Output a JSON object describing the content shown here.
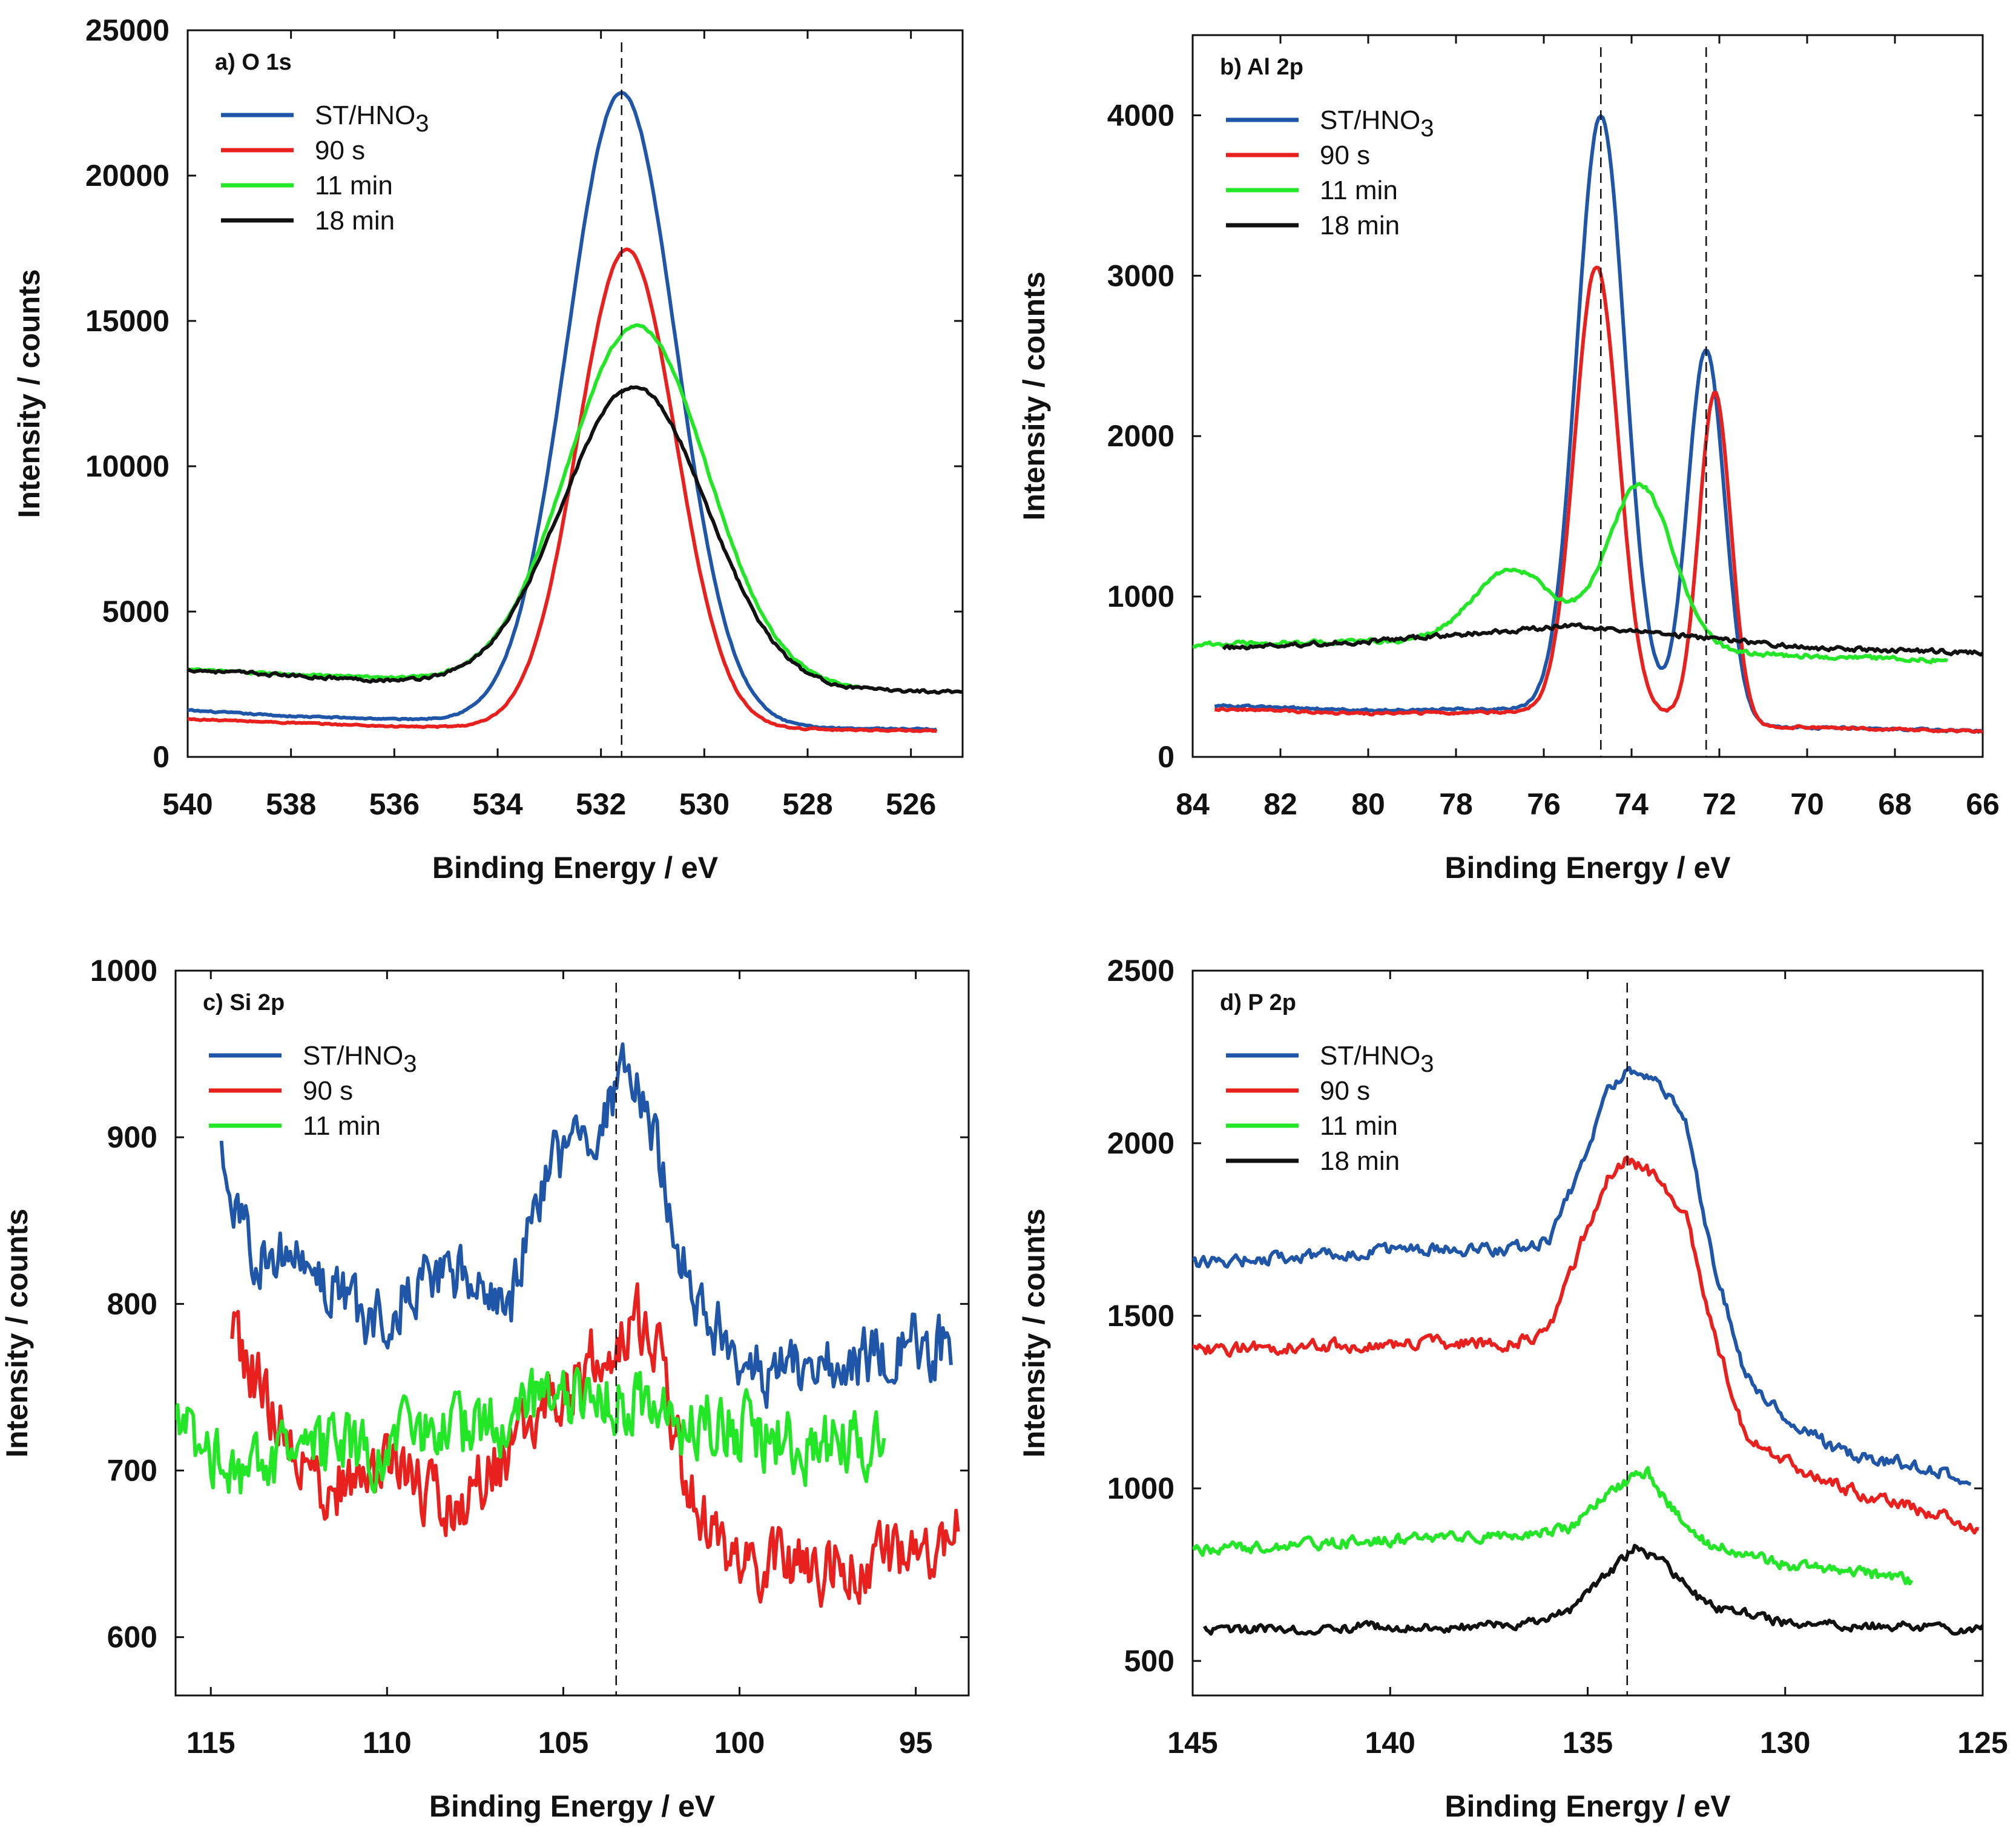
{
  "chart_data": [
    {
      "type": "line",
      "panel": "a",
      "title": "a) O 1s",
      "xlabel": "Binding Energy / eV",
      "ylabel": "Intensity / counts",
      "xlim": [
        540,
        525
      ],
      "ylim": [
        0,
        25000
      ],
      "xticks": [
        540,
        538,
        536,
        534,
        532,
        530,
        528,
        526
      ],
      "yticks": [
        0,
        5000,
        10000,
        15000,
        20000,
        25000
      ],
      "reference_lines": [
        531.6
      ],
      "legend_location": "top-left",
      "series": [
        {
          "name": "ST/HNO3",
          "color": "#1f56a8",
          "peaks": [
            {
              "c": 531.6,
              "a": 21700,
              "w": 1.05
            }
          ],
          "baseline": [
            [
              540,
              1600
            ],
            [
              538,
              1400
            ],
            [
              536,
              1300
            ],
            [
              534,
              1250
            ],
            [
              530,
              1100
            ],
            [
              528,
              1000
            ],
            [
              525.5,
              950
            ]
          ],
          "x_range": [
            540,
            525.5
          ],
          "noise": 40
        },
        {
          "name": "90 s",
          "color": "#e8201e",
          "peaks": [
            {
              "c": 531.5,
              "a": 16500,
              "w": 0.95
            }
          ],
          "baseline": [
            [
              540,
              1300
            ],
            [
              536,
              1050
            ],
            [
              534,
              1000
            ],
            [
              530,
              950
            ],
            [
              528,
              950
            ],
            [
              525.5,
              900
            ]
          ],
          "x_range": [
            540,
            525.5
          ],
          "noise": 40
        },
        {
          "name": "11 min",
          "color": "#22e626",
          "peaks": [
            {
              "c": 531.3,
              "a": 12300,
              "w": 1.35
            }
          ],
          "baseline": [
            [
              540,
              3000
            ],
            [
              536,
              2700
            ],
            [
              534,
              2600
            ],
            [
              530,
              2500
            ],
            [
              528,
              2400
            ],
            [
              527,
              2300
            ]
          ],
          "x_range": [
            540,
            527
          ],
          "noise": 60
        },
        {
          "name": "18 min",
          "color": "#111111",
          "peaks": [
            {
              "c": 531.35,
              "a": 10300,
              "w": 1.4
            }
          ],
          "baseline": [
            [
              540,
              3000
            ],
            [
              536,
              2600
            ],
            [
              534,
              2500
            ],
            [
              530,
              2400
            ],
            [
              528,
              2300
            ],
            [
              525,
              2250
            ]
          ],
          "x_range": [
            540,
            525
          ],
          "noise": 90
        }
      ]
    },
    {
      "type": "line",
      "panel": "b",
      "title": "b) Al 2p",
      "xlabel": "Binding Energy / eV",
      "ylabel": "Intensity / counts",
      "xlim": [
        84,
        66
      ],
      "ylim": [
        0,
        4500
      ],
      "xticks": [
        84,
        82,
        80,
        78,
        76,
        74,
        72,
        70,
        68,
        66
      ],
      "yticks": [
        0,
        1000,
        2000,
        3000,
        4000
      ],
      "reference_lines": [
        74.7,
        72.3
      ],
      "legend_location": "top-left",
      "series": [
        {
          "name": "ST/HNO3",
          "color": "#1f56a8",
          "peaks": [
            {
              "c": 74.7,
              "a": 3700,
              "w": 0.55
            },
            {
              "c": 72.3,
              "a": 2300,
              "w": 0.42
            }
          ],
          "baseline": [
            [
              83.5,
              320
            ],
            [
              80,
              290
            ],
            [
              77,
              300
            ],
            [
              74,
              300
            ],
            [
              71,
              190
            ],
            [
              66,
              160
            ]
          ],
          "x_range": [
            83.5,
            66
          ],
          "noise": 12
        },
        {
          "name": "90 s",
          "color": "#e8201e",
          "peaks": [
            {
              "c": 74.8,
              "a": 2780,
              "w": 0.5
            },
            {
              "c": 72.1,
              "a": 2050,
              "w": 0.36
            }
          ],
          "baseline": [
            [
              83.5,
              300
            ],
            [
              80,
              270
            ],
            [
              77,
              280
            ],
            [
              74,
              280
            ],
            [
              71,
              190
            ],
            [
              66,
              160
            ]
          ],
          "x_range": [
            83.5,
            66
          ],
          "noise": 12
        },
        {
          "name": "11 min",
          "color": "#22e626",
          "peaks": [
            {
              "c": 73.8,
              "a": 1000,
              "w": 0.75
            },
            {
              "c": 76.7,
              "a": 450,
              "w": 0.9
            }
          ],
          "baseline": [
            [
              84,
              700
            ],
            [
              80,
              720
            ],
            [
              77,
              720
            ],
            [
              74,
              700
            ],
            [
              72,
              650
            ],
            [
              66.8,
              600
            ]
          ],
          "x_range": [
            84,
            66.8
          ],
          "noise": 22
        },
        {
          "name": "18 min",
          "color": "#111111",
          "peaks": [],
          "baseline": [
            [
              83.3,
              680
            ],
            [
              80,
              720
            ],
            [
              77,
              780
            ],
            [
              75.5,
              820
            ],
            [
              73,
              760
            ],
            [
              70,
              680
            ],
            [
              66,
              650
            ]
          ],
          "x_range": [
            83.3,
            66
          ],
          "noise": 22
        }
      ]
    },
    {
      "type": "line",
      "panel": "c",
      "title": "c) Si 2p",
      "xlabel": "Binding Energy / eV",
      "ylabel": "Intensity / counts",
      "xlim": [
        116,
        93.5
      ],
      "ylim": [
        565,
        1000
      ],
      "xticks": [
        115,
        110,
        105,
        100,
        95
      ],
      "yticks": [
        600,
        700,
        800,
        900,
        1000
      ],
      "reference_lines": [
        103.5
      ],
      "legend_location": "top-left",
      "series": [
        {
          "name": "ST/HNO3",
          "color": "#1f56a8",
          "peaks": [],
          "baseline": [
            [
              114.7,
              900
            ],
            [
              114.2,
              840
            ],
            [
              112,
              820
            ],
            [
              110.5,
              790
            ],
            [
              108.5,
              820
            ],
            [
              106.5,
              800
            ],
            [
              105.5,
              880
            ],
            [
              104,
              900
            ],
            [
              103.3,
              935
            ],
            [
              102.5,
              910
            ],
            [
              101.5,
              820
            ],
            [
              100,
              760
            ],
            [
              97,
              760
            ],
            [
              95,
              780
            ],
            [
              94,
              770
            ]
          ],
          "x_range": [
            114.7,
            94
          ],
          "noise": 30
        },
        {
          "name": "90 s",
          "color": "#e8201e",
          "peaks": [],
          "baseline": [
            [
              114.4,
              780
            ],
            [
              112,
              690
            ],
            [
              110,
              700
            ],
            [
              108,
              680
            ],
            [
              106,
              720
            ],
            [
              104,
              770
            ],
            [
              103,
              790
            ],
            [
              102.3,
              780
            ],
            [
              101.5,
              690
            ],
            [
              100.5,
              650
            ],
            [
              98,
              640
            ],
            [
              95,
              650
            ],
            [
              94,
              660
            ]
          ],
          "x_range": [
            114.4,
            93.8
          ],
          "noise": 32
        },
        {
          "name": "11 min",
          "color": "#22e626",
          "peaks": [],
          "baseline": [
            [
              116,
              730
            ],
            [
              114,
              700
            ],
            [
              112,
              710
            ],
            [
              110,
              715
            ],
            [
              108,
              720
            ],
            [
              106,
              740
            ],
            [
              104,
              750
            ],
            [
              102,
              735
            ],
            [
              100,
              725
            ],
            [
              98,
              715
            ],
            [
              96,
              720
            ]
          ],
          "x_range": [
            116,
            95.9
          ],
          "noise": 32
        }
      ]
    },
    {
      "type": "line",
      "panel": "d",
      "title": "d) P 2p",
      "xlabel": "Binding Energy / eV",
      "ylabel": "Intensity / counts",
      "xlim": [
        145,
        125
      ],
      "ylim": [
        400,
        2500
      ],
      "xticks": [
        145,
        140,
        135,
        130,
        125
      ],
      "yticks": [
        500,
        1000,
        1500,
        2000,
        2500
      ],
      "reference_lines": [
        134
      ],
      "legend_location": "top-left",
      "series": [
        {
          "name": "ST/HNO3",
          "color": "#1f56a8",
          "peaks": [],
          "baseline": [
            [
              145,
              1650
            ],
            [
              140,
              1690
            ],
            [
              137,
              1690
            ],
            [
              136,
              1720
            ],
            [
              135.2,
              1920
            ],
            [
              134.5,
              2150
            ],
            [
              134,
              2200
            ],
            [
              133.2,
              2180
            ],
            [
              132.5,
              2050
            ],
            [
              131.8,
              1650
            ],
            [
              131,
              1320
            ],
            [
              130,
              1200
            ],
            [
              128.5,
              1100
            ],
            [
              126,
              1050
            ],
            [
              125.3,
              1020
            ]
          ],
          "x_range": [
            145,
            125.3
          ],
          "noise": 28
        },
        {
          "name": "90 s",
          "color": "#e8201e",
          "peaks": [],
          "baseline": [
            [
              145,
              1400
            ],
            [
              140,
              1420
            ],
            [
              137,
              1420
            ],
            [
              136,
              1450
            ],
            [
              135.2,
              1700
            ],
            [
              134.5,
              1900
            ],
            [
              134,
              1950
            ],
            [
              133.2,
              1900
            ],
            [
              132.5,
              1780
            ],
            [
              131.8,
              1450
            ],
            [
              131,
              1150
            ],
            [
              130,
              1080
            ],
            [
              128.5,
              1000
            ],
            [
              126,
              920
            ],
            [
              125.1,
              880
            ]
          ],
          "x_range": [
            145,
            125.1
          ],
          "noise": 28
        },
        {
          "name": "11 min",
          "color": "#22e626",
          "peaks": [],
          "baseline": [
            [
              145,
              820
            ],
            [
              140,
              850
            ],
            [
              137,
              860
            ],
            [
              135.5,
              880
            ],
            [
              134.5,
              990
            ],
            [
              133.5,
              1050
            ],
            [
              133,
              960
            ],
            [
              132,
              840
            ],
            [
              130,
              780
            ],
            [
              127,
              740
            ],
            [
              126.8,
              730
            ]
          ],
          "x_range": [
            145,
            126.8
          ],
          "noise": 25
        },
        {
          "name": "18 min",
          "color": "#111111",
          "peaks": [],
          "baseline": [
            [
              144.7,
              590
            ],
            [
              140,
              600
            ],
            [
              137,
              600
            ],
            [
              135.5,
              640
            ],
            [
              134.5,
              750
            ],
            [
              133.8,
              830
            ],
            [
              133,
              780
            ],
            [
              132,
              660
            ],
            [
              130,
              610
            ],
            [
              127,
              600
            ],
            [
              125,
              590
            ]
          ],
          "x_range": [
            144.7,
            125
          ],
          "noise": 22
        }
      ]
    }
  ]
}
